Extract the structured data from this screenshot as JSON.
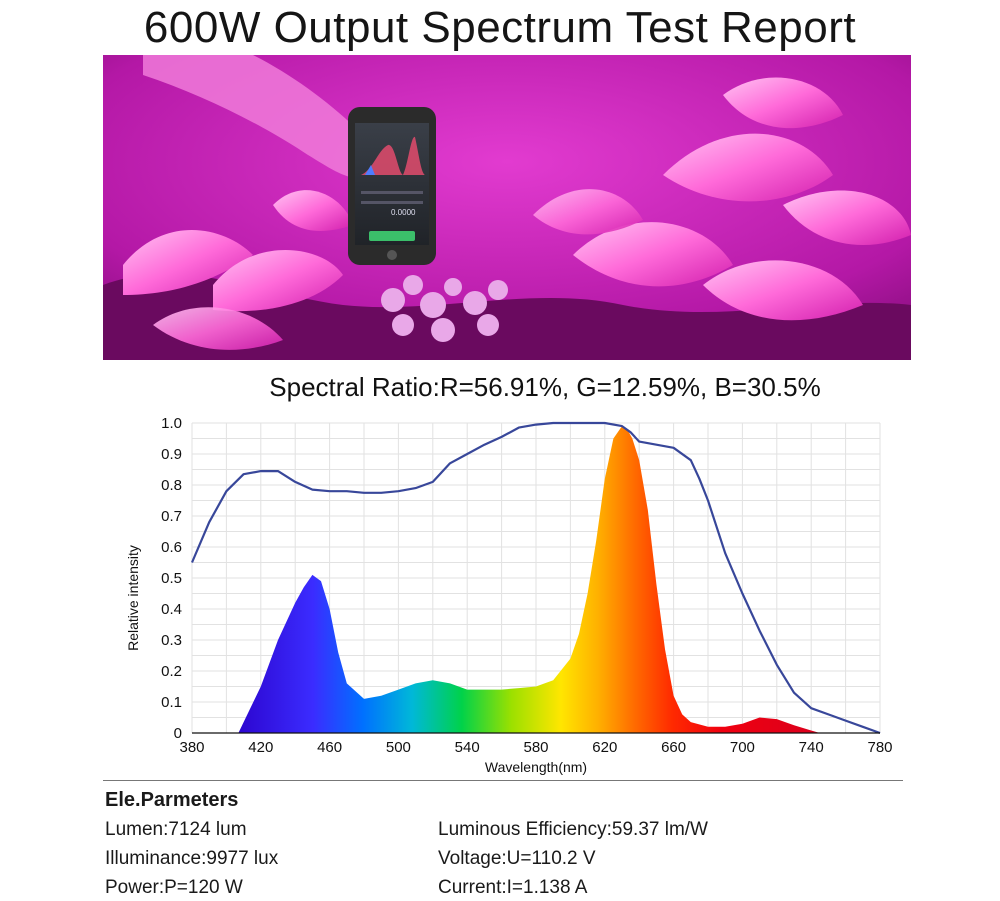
{
  "header": {
    "title": "600W Output Spectrum Test Report"
  },
  "photo": {
    "phone_icon": "smartphone-spectrometer-icon",
    "phone_reading": "0.0000",
    "colors": {
      "background": "#c21fb1",
      "petal": "#ff6ad9",
      "petal_light": "#ffb0ef",
      "phone": "#2b2b2b"
    }
  },
  "ratio": {
    "text": "Spectral Ratio:R=56.91%, G=12.59%, B=30.5%"
  },
  "chart_data": {
    "type": "area",
    "xlabel": "Wavelength(nm)",
    "ylabel": "Relative intensity",
    "xlim": [
      380,
      780
    ],
    "ylim": [
      0,
      1.0
    ],
    "x_ticks": [
      "380",
      "420",
      "460",
      "500",
      "540",
      "580",
      "620",
      "660",
      "700",
      "740",
      "780"
    ],
    "y_ticks": [
      "0",
      "0.1",
      "0.2",
      "0.3",
      "0.4",
      "0.5",
      "0.6",
      "0.7",
      "0.8",
      "0.9",
      "1.0"
    ],
    "grid": true,
    "series": [
      {
        "style": "filled-rainbow",
        "x": [
          407,
          420,
          430,
          440,
          445,
          450,
          455,
          460,
          465,
          470,
          480,
          490,
          500,
          510,
          520,
          530,
          540,
          550,
          560,
          570,
          580,
          590,
          600,
          605,
          610,
          615,
          620,
          625,
          630,
          633,
          636,
          640,
          645,
          650,
          655,
          660,
          665,
          670,
          680,
          690,
          700,
          710,
          720,
          730,
          740,
          745
        ],
        "y": [
          0,
          0.15,
          0.3,
          0.42,
          0.47,
          0.51,
          0.49,
          0.4,
          0.26,
          0.16,
          0.11,
          0.12,
          0.14,
          0.16,
          0.17,
          0.16,
          0.14,
          0.14,
          0.14,
          0.145,
          0.15,
          0.17,
          0.24,
          0.32,
          0.45,
          0.62,
          0.82,
          0.95,
          0.99,
          0.98,
          0.95,
          0.88,
          0.72,
          0.48,
          0.27,
          0.12,
          0.06,
          0.035,
          0.02,
          0.02,
          0.03,
          0.05,
          0.045,
          0.025,
          0.008,
          0
        ]
      },
      {
        "style": "line",
        "color": "#38479a",
        "x": [
          380,
          390,
          400,
          410,
          420,
          430,
          440,
          450,
          460,
          470,
          480,
          490,
          500,
          510,
          520,
          530,
          540,
          550,
          560,
          570,
          580,
          590,
          600,
          610,
          620,
          630,
          635,
          640,
          650,
          660,
          670,
          675,
          680,
          690,
          700,
          710,
          720,
          730,
          740,
          750,
          760,
          770,
          780
        ],
        "y": [
          0.55,
          0.68,
          0.78,
          0.835,
          0.845,
          0.845,
          0.81,
          0.785,
          0.78,
          0.78,
          0.775,
          0.775,
          0.78,
          0.79,
          0.81,
          0.87,
          0.9,
          0.93,
          0.955,
          0.985,
          0.995,
          1.0,
          1.0,
          1.0,
          1.0,
          0.99,
          0.97,
          0.94,
          0.93,
          0.92,
          0.88,
          0.82,
          0.75,
          0.58,
          0.45,
          0.33,
          0.22,
          0.13,
          0.08,
          0.06,
          0.04,
          0.02,
          0
        ]
      }
    ]
  },
  "params": {
    "title": "Ele.Parmeters",
    "lumen": "Lumen:7124 lum",
    "illuminance": "Illuminance:9977 lux",
    "power": "Power:P=120 W",
    "efficiency": "Luminous Efficiency:59.37 lm/W",
    "voltage": "Voltage:U=110.2 V",
    "current": "Current:I=1.138 A"
  }
}
